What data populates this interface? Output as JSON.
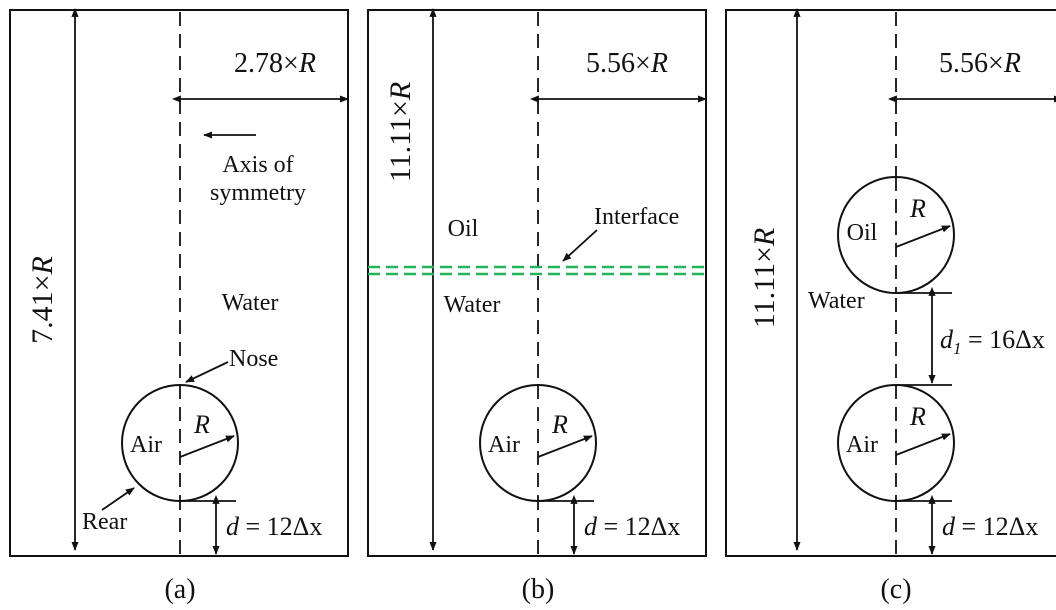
{
  "panel_a": {
    "caption": "(a)",
    "width_label": "2.78×",
    "width_var": "R",
    "height_label": "7.41×",
    "height_var": "R",
    "axis_label_line1": "Axis of",
    "axis_label_line2": "symmetry",
    "fluid_label": "Water",
    "nose_label": "Nose",
    "rear_label": "Rear",
    "bubble_label": "Air",
    "radius_label": "R",
    "d_var": "d",
    "d_value": " = 12Δx"
  },
  "panel_b": {
    "caption": "(b)",
    "width_label": "5.56×",
    "width_var": "R",
    "height_label": "11.11×",
    "height_var": "R",
    "upper_fluid": "Oil",
    "lower_fluid": "Water",
    "interface_label": "Interface",
    "interface_color": "#22b35a",
    "bubble_label": "Air",
    "radius_label": "R",
    "d_var": "d",
    "d_value": " = 12Δx"
  },
  "panel_c": {
    "caption": "(c)",
    "width_label": "5.56×",
    "width_var": "R",
    "height_label": "11.11×",
    "height_var": "R",
    "fluid_label": "Water",
    "upper_bubble_label": "Oil",
    "lower_bubble_label": "Air",
    "radius_label": "R",
    "d1_var": "d",
    "d1_sub": "1",
    "d1_value": " = 16Δx",
    "d_var": "d",
    "d_value": " = 12Δx"
  }
}
